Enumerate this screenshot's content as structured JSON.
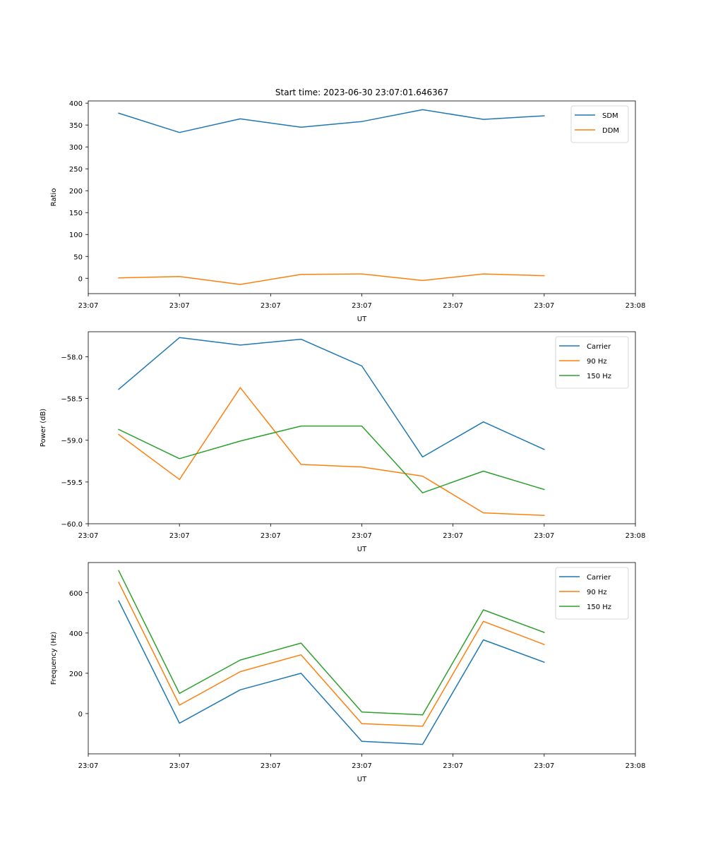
{
  "chart_data": [
    {
      "type": "line",
      "title": "Start time: 2023-06-30 23:07:01.646367",
      "xlabel": "UT",
      "ylabel": "Ratio",
      "xlim": [
        0,
        9
      ],
      "ylim": [
        -35,
        405
      ],
      "x": [
        0.5,
        1.5,
        2.5,
        3.5,
        4.5,
        5.5,
        6.5,
        7.5
      ],
      "x_tick_values": [
        0,
        1.5,
        3,
        4.5,
        6,
        7.5,
        9
      ],
      "x_tick_labels": [
        "23:07",
        "23:07",
        "23:07",
        "23:07",
        "23:07",
        "23:07",
        "23:08"
      ],
      "y_ticks": [
        0,
        50,
        100,
        150,
        200,
        250,
        300,
        350,
        400
      ],
      "y_tick_labels": [
        "0",
        "50",
        "100",
        "150",
        "200",
        "250",
        "300",
        "350",
        "400"
      ],
      "legend_position": "upper right",
      "grid": false,
      "series": [
        {
          "name": "SDM",
          "color": "#1f77b4",
          "values": [
            377,
            333,
            364,
            345,
            358,
            385,
            363,
            371
          ]
        },
        {
          "name": "DDM",
          "color": "#ff7f0e",
          "values": [
            1,
            4,
            -14,
            9,
            10,
            -5,
            10,
            6
          ]
        }
      ]
    },
    {
      "type": "line",
      "title": "",
      "xlabel": "UT",
      "ylabel": "Power (dB)",
      "xlim": [
        0,
        9
      ],
      "ylim": [
        -60,
        -57.7
      ],
      "x": [
        0.5,
        1.5,
        2.5,
        3.5,
        4.5,
        5.5,
        6.5,
        7.5
      ],
      "x_tick_values": [
        0,
        1.5,
        3,
        4.5,
        6,
        7.5,
        9
      ],
      "x_tick_labels": [
        "23:07",
        "23:07",
        "23:07",
        "23:07",
        "23:07",
        "23:07",
        "23:08"
      ],
      "y_ticks": [
        -60,
        -59.5,
        -59,
        -58.5,
        -58
      ],
      "y_tick_labels": [
        "−60.0",
        "−59.5",
        "−59.0",
        "−58.5",
        "−58.0"
      ],
      "legend_position": "upper right",
      "grid": false,
      "series": [
        {
          "name": "Carrier",
          "color": "#1f77b4",
          "values": [
            -58.39,
            -57.77,
            -57.86,
            -57.79,
            -58.11,
            -59.2,
            -58.78,
            -59.11
          ]
        },
        {
          "name": "90 Hz",
          "color": "#ff7f0e",
          "values": [
            -58.93,
            -59.47,
            -58.37,
            -59.29,
            -59.32,
            -59.43,
            -59.87,
            -59.9
          ]
        },
        {
          "name": "150 Hz",
          "color": "#2ca02c",
          "values": [
            -58.87,
            -59.22,
            -59.01,
            -58.83,
            -58.83,
            -59.63,
            -59.37,
            -59.59
          ]
        }
      ]
    },
    {
      "type": "line",
      "title": "",
      "xlabel": "UT",
      "ylabel": "Frequency (Hz)",
      "xlim": [
        0,
        9
      ],
      "ylim": [
        -200,
        750
      ],
      "x": [
        0.5,
        1.5,
        2.5,
        3.5,
        4.5,
        5.5,
        6.5,
        7.5
      ],
      "x_tick_values": [
        0,
        1.5,
        3,
        4.5,
        6,
        7.5,
        9
      ],
      "x_tick_labels": [
        "23:07",
        "23:07",
        "23:07",
        "23:07",
        "23:07",
        "23:07",
        "23:08"
      ],
      "y_ticks": [
        0,
        200,
        400,
        600
      ],
      "y_tick_labels": [
        "0",
        "200",
        "400",
        "600"
      ],
      "legend_position": "upper right",
      "grid": false,
      "series": [
        {
          "name": "Carrier",
          "color": "#1f77b4",
          "values": [
            560,
            -48,
            118,
            200,
            -138,
            -153,
            366,
            255
          ]
        },
        {
          "name": "90 Hz",
          "color": "#ff7f0e",
          "values": [
            652,
            42,
            208,
            292,
            -50,
            -63,
            458,
            343
          ]
        },
        {
          "name": "150 Hz",
          "color": "#2ca02c",
          "values": [
            710,
            100,
            266,
            350,
            8,
            -6,
            515,
            403
          ]
        }
      ]
    }
  ]
}
